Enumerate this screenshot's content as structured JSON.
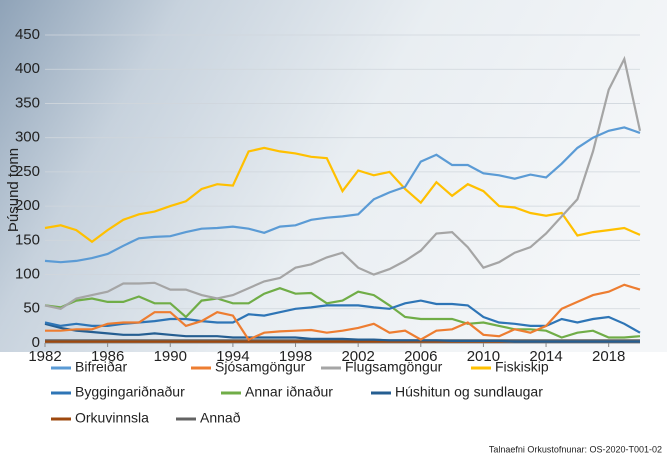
{
  "chart_data": {
    "type": "line",
    "ylabel": "Þúsund tonn",
    "source": "Talnaefni Orkustofnunar: OS-2020-T001-02",
    "x": [
      1982,
      1983,
      1984,
      1985,
      1986,
      1987,
      1988,
      1989,
      1990,
      1991,
      1992,
      1993,
      1994,
      1995,
      1996,
      1997,
      1998,
      1999,
      2000,
      2001,
      2002,
      2003,
      2004,
      2005,
      2006,
      2007,
      2008,
      2009,
      2010,
      2011,
      2012,
      2013,
      2014,
      2015,
      2016,
      2017,
      2018,
      2019,
      2020
    ],
    "xlim": [
      1982,
      2020
    ],
    "xticks": [
      1982,
      1986,
      1990,
      1994,
      1998,
      2002,
      2006,
      2010,
      2014,
      2018
    ],
    "ylim": [
      0,
      450
    ],
    "yticks": [
      0,
      50,
      100,
      150,
      200,
      250,
      300,
      350,
      400,
      450
    ],
    "grid": true,
    "series": [
      {
        "name": "Bifreiðar",
        "color": "#5b9bd5",
        "values": [
          120,
          118,
          120,
          124,
          130,
          142,
          153,
          155,
          156,
          162,
          167,
          168,
          170,
          167,
          161,
          170,
          172,
          180,
          183,
          185,
          188,
          210,
          220,
          228,
          265,
          275,
          260,
          260,
          248,
          245,
          240,
          246,
          242,
          262,
          285,
          300,
          310,
          315,
          307
        ]
      },
      {
        "name": "Sjósamgöngur",
        "color": "#ed7d31",
        "values": [
          18,
          18,
          20,
          20,
          28,
          30,
          30,
          45,
          45,
          25,
          32,
          45,
          40,
          5,
          15,
          17,
          18,
          19,
          15,
          18,
          22,
          28,
          15,
          18,
          5,
          18,
          20,
          30,
          12,
          10,
          20,
          15,
          25,
          50,
          60,
          70,
          75,
          85,
          78
        ]
      },
      {
        "name": "Flugsamgöngur",
        "color": "#a5a5a5",
        "values": [
          55,
          50,
          65,
          70,
          75,
          87,
          87,
          88,
          78,
          78,
          70,
          65,
          70,
          80,
          90,
          95,
          110,
          115,
          125,
          132,
          110,
          100,
          108,
          120,
          135,
          160,
          162,
          140,
          110,
          118,
          132,
          140,
          160,
          185,
          210,
          280,
          370,
          415,
          310
        ]
      },
      {
        "name": "Fiskiskip",
        "color": "#ffc000",
        "values": [
          168,
          172,
          165,
          148,
          165,
          180,
          188,
          192,
          200,
          207,
          225,
          232,
          230,
          280,
          285,
          280,
          277,
          272,
          270,
          222,
          252,
          245,
          250,
          225,
          205,
          235,
          215,
          232,
          222,
          200,
          198,
          190,
          186,
          190,
          157,
          162,
          165,
          168,
          158
        ]
      },
      {
        "name": "Byggingariðnaður",
        "color": "#2e75b6",
        "values": [
          30,
          25,
          28,
          25,
          25,
          28,
          30,
          32,
          35,
          35,
          32,
          30,
          30,
          42,
          40,
          45,
          50,
          52,
          55,
          55,
          55,
          52,
          50,
          58,
          62,
          57,
          57,
          55,
          38,
          30,
          28,
          25,
          25,
          35,
          30,
          35,
          38,
          28,
          15
        ]
      },
      {
        "name": "Annar iðnaður",
        "color": "#70ad47",
        "values": [
          55,
          52,
          62,
          65,
          60,
          60,
          68,
          58,
          58,
          38,
          62,
          65,
          58,
          58,
          72,
          80,
          72,
          73,
          58,
          62,
          75,
          70,
          55,
          38,
          35,
          35,
          35,
          28,
          30,
          25,
          20,
          20,
          18,
          8,
          15,
          18,
          8,
          8,
          10
        ]
      },
      {
        "name": "Húshitun og sundlaugar",
        "color": "#255e91",
        "values": [
          28,
          22,
          18,
          16,
          14,
          12,
          12,
          14,
          12,
          10,
          10,
          10,
          8,
          8,
          8,
          8,
          8,
          6,
          6,
          6,
          5,
          5,
          4,
          4,
          4,
          4,
          3,
          3,
          3,
          3,
          2,
          2,
          2,
          2,
          2,
          2,
          2,
          2,
          2
        ]
      },
      {
        "name": "Orkuvinnsla",
        "color": "#9e480e",
        "values": [
          2,
          2,
          2,
          2,
          2,
          2,
          2,
          2,
          2,
          2,
          2,
          2,
          2,
          2,
          2,
          2,
          2,
          2,
          2,
          2,
          2,
          2,
          2,
          2,
          2,
          2,
          2,
          2,
          2,
          2,
          2,
          2,
          2,
          2,
          2,
          2,
          2,
          2,
          2
        ]
      },
      {
        "name": "Annað",
        "color": "#636363",
        "values": [
          4,
          4,
          4,
          4,
          4,
          4,
          4,
          4,
          4,
          4,
          4,
          4,
          4,
          4,
          4,
          4,
          4,
          4,
          4,
          4,
          4,
          4,
          4,
          4,
          4,
          4,
          4,
          4,
          4,
          4,
          4,
          4,
          4,
          4,
          4,
          4,
          4,
          4,
          4
        ]
      }
    ]
  }
}
